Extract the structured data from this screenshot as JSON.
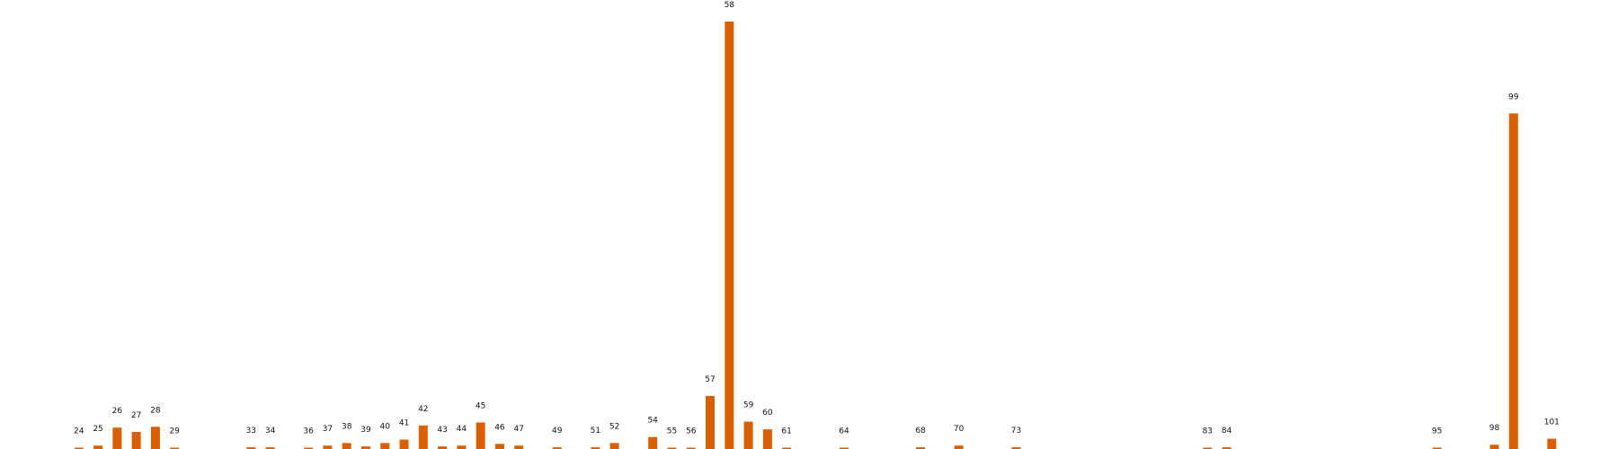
{
  "colors": {
    "bar": "#d95f02",
    "background": "#ffffff",
    "label": "#111111"
  },
  "chart_data": {
    "type": "bar",
    "title": "",
    "xlabel": "",
    "ylabel": "",
    "grid": false,
    "axes_visible": false,
    "x_range": [
      23,
      102
    ],
    "ylim": [
      0,
      1000
    ],
    "categories": [
      "24",
      "25",
      "26",
      "27",
      "28",
      "29",
      "33",
      "34",
      "36",
      "37",
      "38",
      "39",
      "40",
      "41",
      "42",
      "43",
      "44",
      "45",
      "46",
      "47",
      "49",
      "51",
      "52",
      "54",
      "55",
      "56",
      "57",
      "58",
      "59",
      "60",
      "61",
      "64",
      "68",
      "70",
      "73",
      "83",
      "84",
      "95",
      "98",
      "99",
      "101"
    ],
    "values": [
      2,
      8,
      50,
      40,
      52,
      2,
      4,
      4,
      2,
      8,
      14,
      6,
      14,
      22,
      55,
      6,
      8,
      62,
      12,
      8,
      4,
      4,
      14,
      28,
      2,
      2,
      124,
      1000,
      64,
      46,
      2,
      2,
      4,
      8,
      4,
      2,
      4,
      2,
      10,
      785,
      24
    ]
  }
}
